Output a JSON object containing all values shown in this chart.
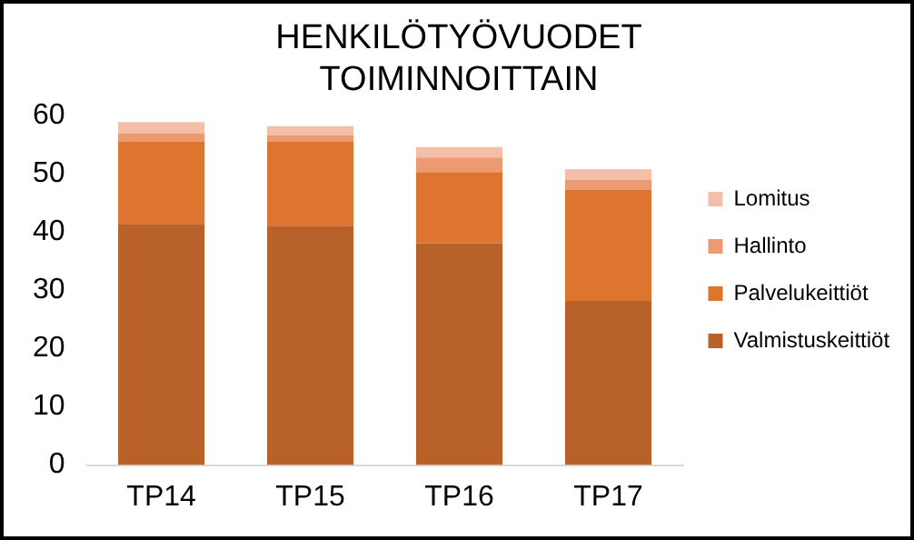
{
  "chart_data": {
    "type": "bar",
    "title": "HENKILÖTYÖVUODET TOIMINNOITTAIN",
    "categories": [
      "TP14",
      "TP15",
      "TP16",
      "TP17"
    ],
    "stacked": true,
    "series": [
      {
        "name": "Valmistuskeittiöt",
        "color": "#b8622a",
        "values": [
          41.4,
          41.1,
          38.1,
          28.2
        ]
      },
      {
        "name": "Palvelukeittiöt",
        "color": "#dd7530",
        "values": [
          14.1,
          14.4,
          12.2,
          19.1
        ]
      },
      {
        "name": "Hallinto",
        "color": "#eb9a72",
        "values": [
          1.5,
          1.1,
          2.5,
          1.7
        ]
      },
      {
        "name": "Lomitus",
        "color": "#f4bfa8",
        "values": [
          1.9,
          1.6,
          1.8,
          1.8
        ]
      }
    ],
    "ylim": [
      0,
      60
    ],
    "yticks": [
      0,
      10,
      20,
      30,
      40,
      50,
      60
    ],
    "grid": false,
    "legend": "right"
  }
}
